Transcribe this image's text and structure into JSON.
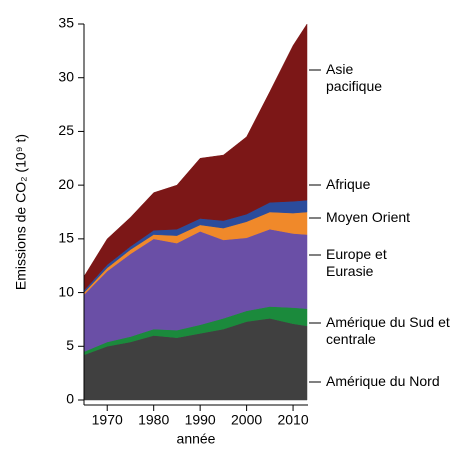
{
  "chart_data": {
    "type": "stacked_area",
    "y_label": "Emissions de CO₂ (10⁹ t)",
    "x_label": "année",
    "x": [
      1965,
      1970,
      1975,
      1980,
      1985,
      1990,
      1995,
      2000,
      2005,
      2010,
      2013
    ],
    "series": [
      {
        "name": "Amérique du Nord",
        "color": "#404040",
        "values": [
          4.2,
          5.0,
          5.4,
          6.0,
          5.8,
          6.2,
          6.6,
          7.3,
          7.6,
          7.1,
          6.9
        ]
      },
      {
        "name": "Amérique du Sud et centrale",
        "color": "#1b8a3c",
        "values": [
          0.3,
          0.4,
          0.5,
          0.6,
          0.7,
          0.8,
          1.0,
          1.0,
          1.1,
          1.5,
          1.6
        ]
      },
      {
        "name": "Europe et Eurasie",
        "color": "#6a4fa6",
        "values": [
          5.3,
          6.6,
          7.7,
          8.4,
          8.1,
          8.7,
          7.3,
          6.8,
          7.2,
          6.9,
          6.9
        ]
      },
      {
        "name": "Moyen Orient",
        "color": "#f0892a",
        "values": [
          0.2,
          0.3,
          0.4,
          0.4,
          0.7,
          0.6,
          1.1,
          1.5,
          1.6,
          1.9,
          2.1
        ]
      },
      {
        "name": "Afrique",
        "color": "#2b4c9c",
        "values": [
          0.2,
          0.3,
          0.3,
          0.4,
          0.6,
          0.6,
          0.7,
          0.7,
          0.9,
          1.1,
          1.1
        ]
      },
      {
        "name": "Asie pacifique",
        "color": "#7c1717",
        "values": [
          1.3,
          2.4,
          2.7,
          3.5,
          4.1,
          5.6,
          6.1,
          7.2,
          10.3,
          14.5,
          16.4
        ]
      }
    ],
    "xlim": [
      1965,
      2013
    ],
    "xticks": [
      1970,
      1980,
      1990,
      2000,
      2010
    ],
    "ylim": [
      0,
      35
    ],
    "yticks": [
      0,
      5,
      10,
      15,
      20,
      25,
      30,
      35
    ]
  }
}
